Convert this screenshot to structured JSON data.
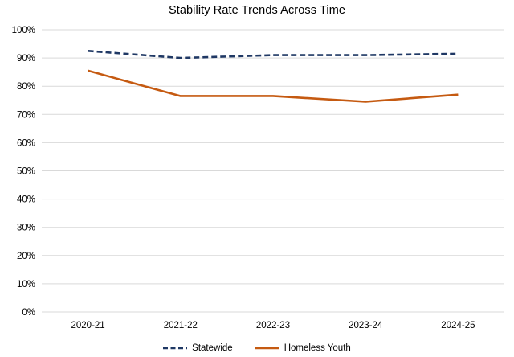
{
  "title": "Stability Rate Trends Across Time",
  "chart_data": {
    "type": "line",
    "title": "Stability Rate Trends Across Time",
    "categories": [
      "2020-21",
      "2021-22",
      "2022-23",
      "2023-24",
      "2024-25"
    ],
    "series": [
      {
        "name": "Statewide",
        "values": [
          92.5,
          90,
          91,
          91,
          91.5
        ],
        "color": "#1f3864",
        "style": "dashed"
      },
      {
        "name": "Homeless Youth",
        "values": [
          85.5,
          76.5,
          76.5,
          74.5,
          77
        ],
        "color": "#c55a11",
        "style": "solid"
      }
    ],
    "xlabel": "",
    "ylabel": "",
    "ylim": [
      0,
      100
    ],
    "ytick_step": 10,
    "ytick_suffix": "%",
    "grid": true,
    "grid_color": "#d9d9d9",
    "text_color": "#000000",
    "legend_position": "bottom"
  }
}
